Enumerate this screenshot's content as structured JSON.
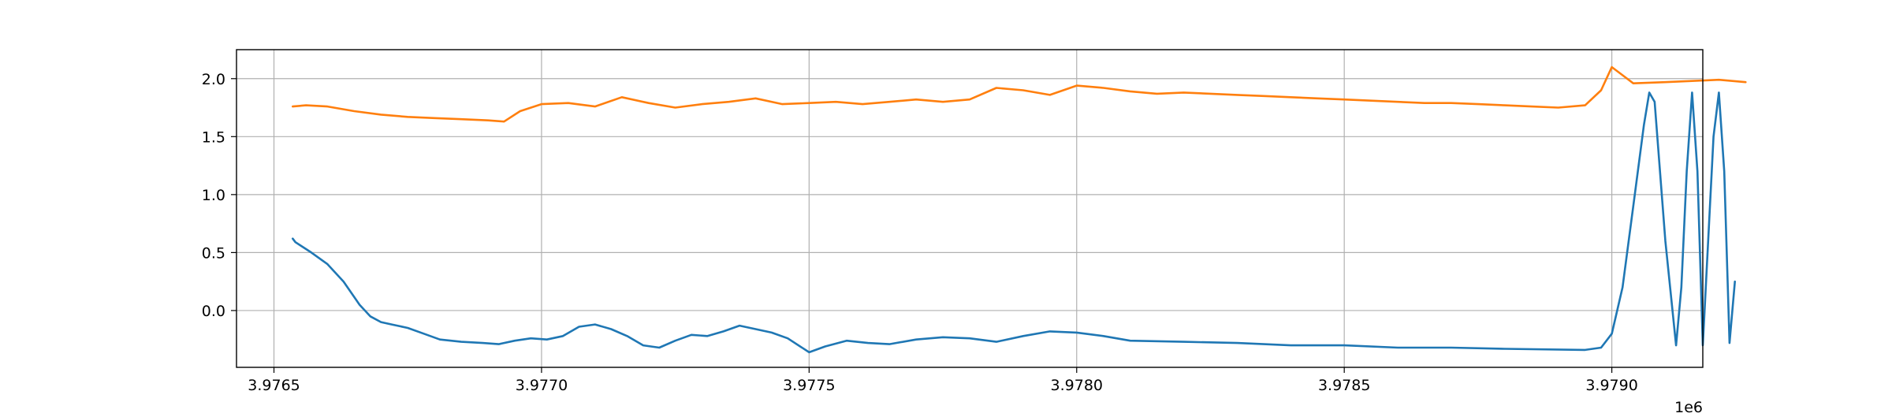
{
  "chart_data": {
    "type": "line",
    "title": "",
    "xlabel": "",
    "ylabel": "",
    "x_offset_text": "1e6",
    "xlim": [
      3.97643,
      3.97917
    ],
    "ylim": [
      -0.49,
      2.25
    ],
    "xticks": [
      3.9765,
      3.977,
      3.9775,
      3.978,
      3.9785,
      3.979
    ],
    "xtick_labels": [
      "3.9765",
      "3.9770",
      "3.9775",
      "3.9780",
      "3.9785",
      "3.9790"
    ],
    "yticks": [
      0.0,
      0.5,
      1.0,
      1.5,
      2.0
    ],
    "ytick_labels": [
      "0.0",
      "0.5",
      "1.0",
      "1.5",
      "2.0"
    ],
    "grid": true,
    "legend": "none",
    "series": [
      {
        "color": "#1f77b4",
        "points": [
          [
            3.976535,
            0.62
          ],
          [
            3.97654,
            0.59
          ],
          [
            3.97655,
            0.56
          ],
          [
            3.97657,
            0.5
          ],
          [
            3.9766,
            0.4
          ],
          [
            3.97663,
            0.25
          ],
          [
            3.97666,
            0.05
          ],
          [
            3.97668,
            -0.05
          ],
          [
            3.9767,
            -0.1
          ],
          [
            3.97672,
            -0.12
          ],
          [
            3.97675,
            -0.15
          ],
          [
            3.97678,
            -0.2
          ],
          [
            3.97681,
            -0.25
          ],
          [
            3.97685,
            -0.27
          ],
          [
            3.97689,
            -0.28
          ],
          [
            3.97692,
            -0.29
          ],
          [
            3.97695,
            -0.26
          ],
          [
            3.97698,
            -0.24
          ],
          [
            3.97701,
            -0.25
          ],
          [
            3.97704,
            -0.22
          ],
          [
            3.97707,
            -0.14
          ],
          [
            3.9771,
            -0.12
          ],
          [
            3.97713,
            -0.16
          ],
          [
            3.97716,
            -0.22
          ],
          [
            3.97719,
            -0.3
          ],
          [
            3.97722,
            -0.32
          ],
          [
            3.97725,
            -0.26
          ],
          [
            3.97728,
            -0.21
          ],
          [
            3.97731,
            -0.22
          ],
          [
            3.97734,
            -0.18
          ],
          [
            3.97737,
            -0.13
          ],
          [
            3.9774,
            -0.16
          ],
          [
            3.97743,
            -0.19
          ],
          [
            3.97746,
            -0.24
          ],
          [
            3.9775,
            -0.36
          ],
          [
            3.97753,
            -0.31
          ],
          [
            3.97757,
            -0.26
          ],
          [
            3.97761,
            -0.28
          ],
          [
            3.97765,
            -0.29
          ],
          [
            3.9777,
            -0.25
          ],
          [
            3.97775,
            -0.23
          ],
          [
            3.9778,
            -0.24
          ],
          [
            3.97785,
            -0.27
          ],
          [
            3.9779,
            -0.22
          ],
          [
            3.97795,
            -0.18
          ],
          [
            3.978,
            -0.19
          ],
          [
            3.97805,
            -0.22
          ],
          [
            3.9781,
            -0.26
          ],
          [
            3.9782,
            -0.27
          ],
          [
            3.9783,
            -0.28
          ],
          [
            3.9784,
            -0.3
          ],
          [
            3.9785,
            -0.3
          ],
          [
            3.9786,
            -0.32
          ],
          [
            3.9787,
            -0.32
          ],
          [
            3.9788,
            -0.33
          ],
          [
            3.97895,
            -0.34
          ],
          [
            3.97898,
            -0.32
          ],
          [
            3.979,
            -0.2
          ],
          [
            3.97902,
            0.2
          ],
          [
            3.97904,
            0.9
          ],
          [
            3.97906,
            1.6
          ],
          [
            3.97907,
            1.88
          ],
          [
            3.97908,
            1.8
          ],
          [
            3.9791,
            0.6
          ],
          [
            3.97912,
            -0.3
          ],
          [
            3.97913,
            0.2
          ],
          [
            3.97914,
            1.2
          ],
          [
            3.97915,
            1.88
          ],
          [
            3.97916,
            1.2
          ],
          [
            3.97917,
            -0.3
          ],
          [
            3.97918,
            0.6
          ],
          [
            3.97919,
            1.5
          ],
          [
            3.9792,
            1.88
          ],
          [
            3.97921,
            1.2
          ],
          [
            3.97922,
            -0.28
          ],
          [
            3.97923,
            0.25
          ]
        ]
      },
      {
        "color": "#ff7f0e",
        "points": [
          [
            3.976535,
            1.76
          ],
          [
            3.97656,
            1.77
          ],
          [
            3.9766,
            1.76
          ],
          [
            3.97665,
            1.72
          ],
          [
            3.9767,
            1.69
          ],
          [
            3.97675,
            1.67
          ],
          [
            3.9768,
            1.66
          ],
          [
            3.97685,
            1.65
          ],
          [
            3.9769,
            1.64
          ],
          [
            3.97693,
            1.63
          ],
          [
            3.97696,
            1.72
          ],
          [
            3.977,
            1.78
          ],
          [
            3.97705,
            1.79
          ],
          [
            3.9771,
            1.76
          ],
          [
            3.97715,
            1.84
          ],
          [
            3.9772,
            1.79
          ],
          [
            3.97725,
            1.75
          ],
          [
            3.9773,
            1.78
          ],
          [
            3.97735,
            1.8
          ],
          [
            3.9774,
            1.83
          ],
          [
            3.97745,
            1.78
          ],
          [
            3.9775,
            1.79
          ],
          [
            3.97755,
            1.8
          ],
          [
            3.9776,
            1.78
          ],
          [
            3.97765,
            1.8
          ],
          [
            3.9777,
            1.82
          ],
          [
            3.97775,
            1.8
          ],
          [
            3.9778,
            1.82
          ],
          [
            3.97785,
            1.92
          ],
          [
            3.9779,
            1.9
          ],
          [
            3.97795,
            1.86
          ],
          [
            3.978,
            1.94
          ],
          [
            3.97805,
            1.92
          ],
          [
            3.9781,
            1.89
          ],
          [
            3.97815,
            1.87
          ],
          [
            3.9782,
            1.88
          ],
          [
            3.97825,
            1.87
          ],
          [
            3.9783,
            1.86
          ],
          [
            3.97835,
            1.85
          ],
          [
            3.9784,
            1.84
          ],
          [
            3.97845,
            1.83
          ],
          [
            3.9785,
            1.82
          ],
          [
            3.97855,
            1.81
          ],
          [
            3.9786,
            1.8
          ],
          [
            3.97865,
            1.79
          ],
          [
            3.9787,
            1.79
          ],
          [
            3.97875,
            1.78
          ],
          [
            3.9788,
            1.77
          ],
          [
            3.97885,
            1.76
          ],
          [
            3.9789,
            1.75
          ],
          [
            3.97895,
            1.77
          ],
          [
            3.97898,
            1.9
          ],
          [
            3.979,
            2.1
          ],
          [
            3.97902,
            2.03
          ],
          [
            3.97904,
            1.96
          ],
          [
            3.9791,
            1.97
          ],
          [
            3.97915,
            1.98
          ],
          [
            3.9792,
            1.99
          ],
          [
            3.97925,
            1.97
          ]
        ]
      }
    ]
  }
}
